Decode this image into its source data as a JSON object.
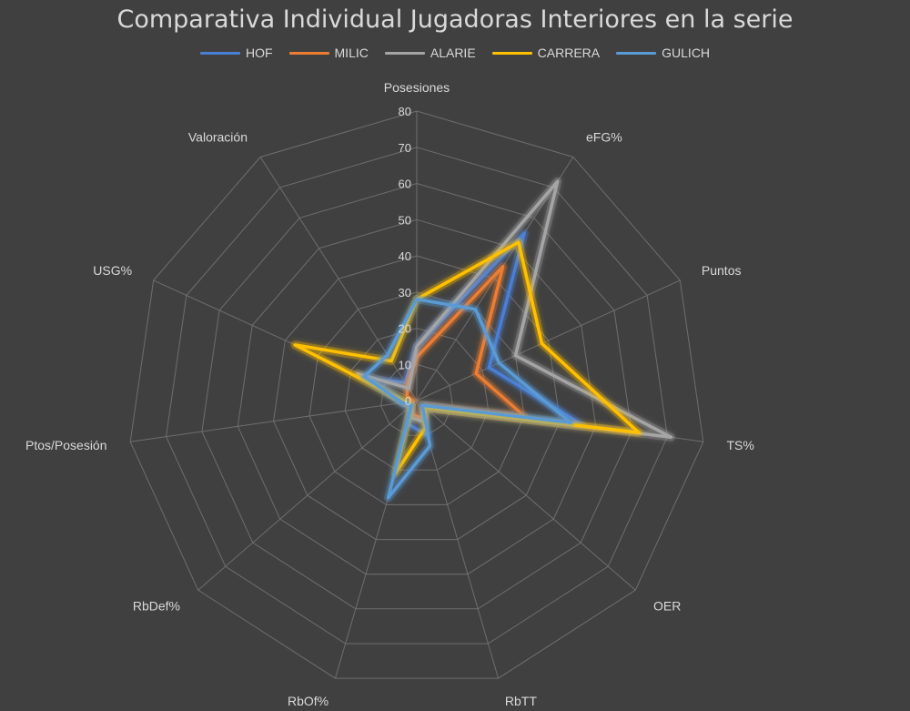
{
  "chart_data": {
    "type": "radar",
    "title": "Comparativa Individual Jugadoras Interiores en la serie",
    "categories": [
      "Posesiones",
      "eFG%",
      "Puntos",
      "TS%",
      "OER",
      "RbTT",
      "RbOf%",
      "RbDef%",
      "Ptos/Posesión",
      "USG%",
      "Valoración"
    ],
    "r_ticks": [
      0,
      10,
      20,
      30,
      40,
      50,
      60,
      70,
      80
    ],
    "r_range": [
      0,
      80
    ],
    "legend_position": "top",
    "series": [
      {
        "name": "HOF",
        "color": "#4a7fd6",
        "values": [
          15,
          55,
          22,
          46,
          3,
          10,
          7,
          3,
          4,
          14,
          6
        ]
      },
      {
        "name": "MILIC",
        "color": "#ed7d31",
        "values": [
          12,
          44,
          18,
          30,
          2,
          5,
          4,
          2,
          1,
          3,
          5
        ]
      },
      {
        "name": "ALARIE",
        "color": "#a5a5a5",
        "values": [
          15,
          72,
          30,
          71,
          3,
          6,
          5,
          2,
          4,
          18,
          4
        ]
      },
      {
        "name": "CARRERA",
        "color": "#ffc000",
        "values": [
          28,
          52,
          38,
          62,
          3,
          8,
          21,
          2,
          3,
          37,
          13
        ]
      },
      {
        "name": "GULICH",
        "color": "#5b9bd5",
        "values": [
          28,
          30,
          25,
          43,
          2,
          13,
          28,
          2,
          4,
          16,
          15
        ]
      }
    ]
  }
}
